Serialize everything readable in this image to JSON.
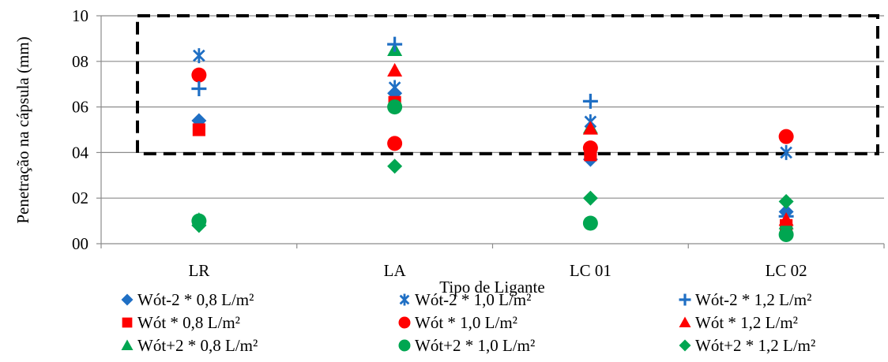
{
  "chart_data": {
    "type": "scatter",
    "title": "",
    "xlabel": "Tipo de Ligante",
    "ylabel": "Penetração na cápsula (mm)",
    "categories": [
      "LR",
      "LA",
      "LC 01",
      "LC 02"
    ],
    "ylim": [
      0,
      10
    ],
    "yticks": [
      0,
      2,
      4,
      6,
      8,
      10
    ],
    "ytick_labels": [
      "00",
      "02",
      "04",
      "06",
      "08",
      "10"
    ],
    "grid": "horizontal",
    "legend_position": "bottom",
    "highlight_box": {
      "x_from": "LR",
      "x_to": "LC 02",
      "y_range": [
        3.95,
        10
      ]
    },
    "series": [
      {
        "name": "Wót-2 * 0,8 L/m²",
        "marker": "diamond",
        "color": "#1F6FC4",
        "values": [
          5.4,
          6.6,
          3.7,
          1.4
        ]
      },
      {
        "name": "Wót * 0,8 L/m²",
        "marker": "square",
        "color": "#FF0000",
        "values": [
          5.0,
          6.2,
          3.9,
          0.8
        ]
      },
      {
        "name": "Wót+2 * 0,8 L/m²",
        "marker": "triangle",
        "color": "#00A651",
        "values": [
          1.05,
          8.5,
          5.1,
          0.9
        ]
      },
      {
        "name": "Wót-2 * 1,0 L/m²",
        "marker": "asterisk",
        "color": "#1F6FC4",
        "values": [
          8.25,
          6.85,
          5.35,
          4.0
        ]
      },
      {
        "name": "Wót * 1,0 L/m²",
        "marker": "circle",
        "color": "#FF0000",
        "values": [
          7.4,
          4.4,
          4.2,
          4.7
        ]
      },
      {
        "name": "Wót+2 * 1,0 L/m²",
        "marker": "circle",
        "color": "#00A651",
        "values": [
          1.0,
          6.0,
          0.9,
          0.4
        ]
      },
      {
        "name": "Wót-2 * 1,2 L/m²",
        "marker": "plus",
        "color": "#1F6FC4",
        "values": [
          6.8,
          8.75,
          6.25,
          1.2
        ]
      },
      {
        "name": "Wót * 1,2 L/m²",
        "marker": "triangle",
        "color": "#FF0000",
        "values": [
          null,
          7.6,
          5.05,
          1.05
        ]
      },
      {
        "name": "Wót+2 * 1,2 L/m²",
        "marker": "diamond",
        "color": "#00A651",
        "values": [
          0.8,
          3.4,
          2.0,
          1.85
        ]
      }
    ]
  }
}
